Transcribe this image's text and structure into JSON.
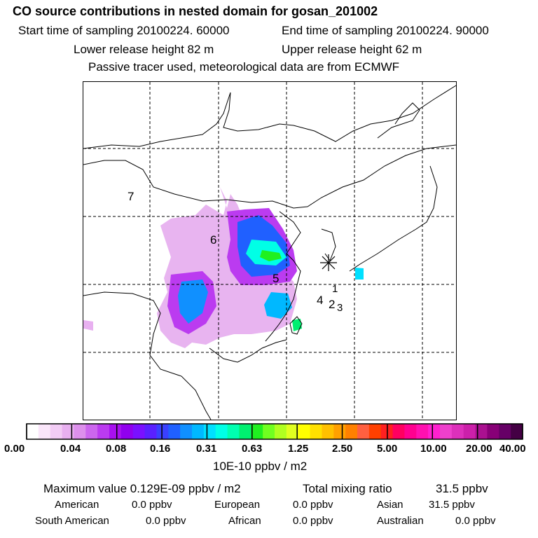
{
  "title": "CO  source contributions in nested domain for gosan_201002",
  "header": {
    "start_label": "Start time of sampling 20100224. 60000",
    "end_label": "End time of sampling 20100224. 90000",
    "lower_label": "Lower release height   82 m",
    "upper_label": "Upper release height   62 m",
    "tracer_note": "Passive tracer used, meteorological data are from ECMWF"
  },
  "map": {
    "point_labels": [
      "7",
      "6",
      "5",
      "4",
      "1",
      "2",
      "3"
    ],
    "receptor_marker": "asterisk"
  },
  "legend": {
    "tick_labels": [
      "0.00",
      "0.04",
      "0.08",
      "0.16",
      "0.31",
      "0.63",
      "1.25",
      "2.50",
      "5.00",
      "10.00",
      "20.00",
      "40.00"
    ],
    "unit_label": "10E-10 ppbv / m2",
    "colors": [
      "#ffffff",
      "#fae6fa",
      "#f2ccf5",
      "#e8b0f0",
      "#dd90ec",
      "#cc66ee",
      "#bb3bf0",
      "#a810f0",
      "#9000ee",
      "#7a10ff",
      "#5a20ff",
      "#3a40ff",
      "#2060ff",
      "#1090ff",
      "#00b8ff",
      "#00e0ff",
      "#00ffe6",
      "#00ffb0",
      "#00f070",
      "#20f020",
      "#70ff20",
      "#b0ff20",
      "#e0ff20",
      "#ffff00",
      "#ffe000",
      "#ffc000",
      "#ffa000",
      "#ff8000",
      "#ff6040",
      "#ff4000",
      "#ff2020",
      "#ff0060",
      "#ff0090",
      "#ff10b0",
      "#ff20d0",
      "#ee40cc",
      "#dd30bb",
      "#cc20aa",
      "#aa1090",
      "#880077",
      "#660066",
      "#440044"
    ]
  },
  "footer": {
    "max_label": "Maximum value  0.129E-09 ppbv / m2",
    "total_label": "Total mixing ratio",
    "total_value": "31.5 ppbv",
    "american_label": "American",
    "american_value": "0.0 ppbv",
    "european_label": "European",
    "european_value": "0.0 ppbv",
    "asian_label": "Asian",
    "asian_value": "31.5 ppbv",
    "south_american_label": "South American",
    "south_american_value": "0.0 ppbv",
    "african_label": "African",
    "african_value": "0.0 ppbv",
    "australian_label": "Australian",
    "australian_value": "0.0 ppbv"
  }
}
